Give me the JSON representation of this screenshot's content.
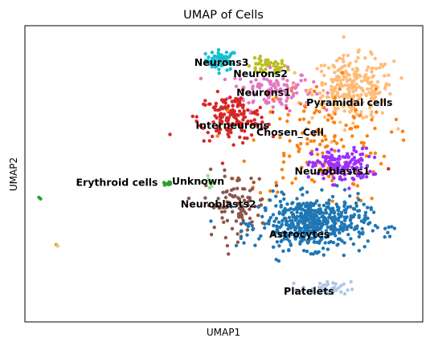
{
  "chart_data": {
    "type": "scatter",
    "title": "UMAP of Cells",
    "xlabel": "UMAP1",
    "ylabel": "UMAP2",
    "xlim": [
      -12.5,
      13
    ],
    "ylim": [
      -10.5,
      10.2
    ],
    "grid": false,
    "legend": "on data",
    "series": [
      {
        "name": "Neurons3",
        "color": "#17becf",
        "center": [
          0.1,
          7.8
        ],
        "spread": [
          1.0,
          0.7
        ],
        "n": 55
      },
      {
        "name": "Neurons2",
        "color": "#bcbd22",
        "center": [
          3.0,
          7.3
        ],
        "spread": [
          1.3,
          0.6
        ],
        "n": 50
      },
      {
        "name": "Neurons1",
        "color": "#e377c2",
        "center": [
          3.3,
          5.7
        ],
        "spread": [
          2.6,
          1.4
        ],
        "n": 120
      },
      {
        "name": "Pyramidal cells",
        "color": "#ffbb78",
        "center": [
          8.5,
          5.8
        ],
        "spread": [
          2.6,
          2.2
        ],
        "n": 260
      },
      {
        "name": "Interneurons",
        "color": "#d62728",
        "center": [
          0.8,
          3.8
        ],
        "spread": [
          2.2,
          1.6
        ],
        "n": 160
      },
      {
        "name": "Chosen_Cell",
        "color": "#ff7f0e",
        "center": [
          6.4,
          2.0
        ],
        "spread": [
          4.5,
          4.2
        ],
        "n": 140
      },
      {
        "name": "Neuroblasts1",
        "color": "#9b30ff",
        "center": [
          7.8,
          0.4
        ],
        "spread": [
          1.9,
          1.2
        ],
        "n": 150
      },
      {
        "name": "Neuroblasts2",
        "color": "#8c564b",
        "center": [
          1.0,
          -2.3
        ],
        "spread": [
          2.0,
          2.2
        ],
        "n": 100
      },
      {
        "name": "Astrocytes",
        "color": "#1f77b4",
        "center": [
          6.0,
          -3.6
        ],
        "spread": [
          3.5,
          1.8
        ],
        "n": 520
      },
      {
        "name": "Platelets",
        "color": "#aec7e8",
        "center": [
          6.8,
          -8.2
        ],
        "spread": [
          1.6,
          0.5
        ],
        "n": 40
      },
      {
        "name": "Erythroid cells",
        "color": "#2ca02c",
        "center": [
          -3.3,
          -0.8
        ],
        "spread": [
          0.3,
          0.2
        ],
        "n": 12
      },
      {
        "name": "Unknown",
        "color": "#98df8a",
        "center": [
          -0.5,
          -0.7
        ],
        "spread": [
          0.6,
          0.4
        ],
        "n": 10
      }
    ],
    "outliers": [
      {
        "x": -11.6,
        "y": -1.8,
        "color": "#2ca02c"
      },
      {
        "x": -11.5,
        "y": -1.9,
        "color": "#2ca02c"
      },
      {
        "x": -10.5,
        "y": -5.1,
        "color": "#bcbd22"
      },
      {
        "x": -10.4,
        "y": -5.2,
        "color": "#ffbb78"
      },
      {
        "x": -3.2,
        "y": 2.6,
        "color": "#d62728"
      },
      {
        "x": 10.8,
        "y": 0.2,
        "color": "#d62728"
      }
    ],
    "labels": [
      {
        "text": "Neurons3",
        "x": 0.1,
        "y": 7.6
      },
      {
        "text": "Neurons2",
        "x": 2.6,
        "y": 6.8
      },
      {
        "text": "Neurons1",
        "x": 2.8,
        "y": 5.5
      },
      {
        "text": "Pyramidal cells",
        "x": 8.3,
        "y": 4.8
      },
      {
        "text": "Interneurons",
        "x": 0.8,
        "y": 3.2
      },
      {
        "text": "Chosen_Cell",
        "x": 4.5,
        "y": 2.7
      },
      {
        "text": "Neuroblasts1",
        "x": 7.2,
        "y": 0.0
      },
      {
        "text": "Erythroid cells",
        "x": -6.6,
        "y": -0.8
      },
      {
        "text": "Unknown",
        "x": -1.4,
        "y": -0.7
      },
      {
        "text": "Neuroblasts2",
        "x": -0.1,
        "y": -2.3
      },
      {
        "text": "Astrocytes",
        "x": 5.1,
        "y": -4.4
      },
      {
        "text": "Platelets",
        "x": 5.7,
        "y": -8.4
      }
    ]
  }
}
